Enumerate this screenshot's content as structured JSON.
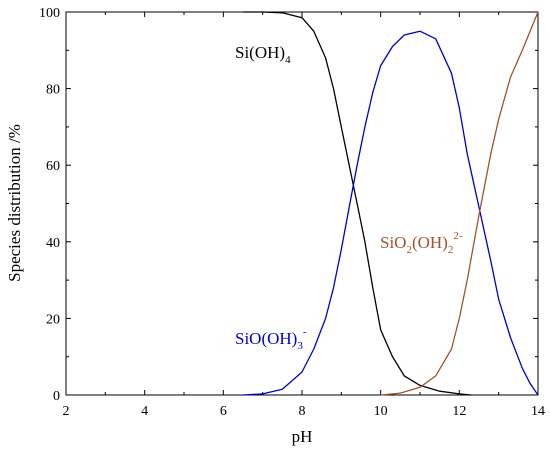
{
  "chart_data": {
    "type": "line",
    "xlabel": "pH",
    "ylabel": "Species distribution /%",
    "xlim": [
      2,
      14
    ],
    "ylim": [
      0,
      100
    ],
    "xticks": [
      "2",
      "4",
      "6",
      "8",
      "10",
      "12",
      "14"
    ],
    "yticks": [
      "0",
      "20",
      "40",
      "60",
      "80",
      "100"
    ],
    "grid": false,
    "legend": "none",
    "series": [
      {
        "name": "Si(OH)4",
        "label_parts": {
          "base": "Si(OH)",
          "sub": "4"
        },
        "color": "#000000",
        "x": [
          6.5,
          7.0,
          7.5,
          8.0,
          8.3,
          8.6,
          8.8,
          9.0,
          9.2,
          9.4,
          9.6,
          9.8,
          10.0,
          10.3,
          10.6,
          11.0,
          11.5,
          12.0,
          12.3
        ],
        "y": [
          100,
          100,
          99.8,
          98.5,
          95,
          88,
          80,
          70,
          60,
          50,
          40,
          28,
          17,
          10,
          5,
          2.5,
          1,
          0.3,
          0
        ]
      },
      {
        "name": "SiO(OH)3-",
        "label_parts": {
          "base": "SiO(OH)",
          "sub": "3",
          "sup": "-"
        },
        "color": "#0000cc",
        "x": [
          6.5,
          7.0,
          7.5,
          8.0,
          8.3,
          8.6,
          8.8,
          9.0,
          9.2,
          9.4,
          9.6,
          9.8,
          10.0,
          10.3,
          10.6,
          11.0,
          11.4,
          11.8,
          12.0,
          12.2,
          12.5,
          12.8,
          13.0,
          13.3,
          13.6,
          13.8,
          14.0
        ],
        "y": [
          0,
          0.3,
          1.5,
          6,
          12,
          20,
          28,
          38,
          49,
          60,
          70,
          79,
          86,
          91,
          94,
          95,
          93,
          84,
          75,
          63,
          49,
          35,
          25,
          15,
          7,
          3,
          0
        ]
      },
      {
        "name": "SiO2(OH)2 2-",
        "label_parts": {
          "base": "SiO",
          "sub1": "2",
          "mid": "(OH)",
          "sub2": "2",
          "sup": "2-"
        },
        "color": "#a0522d",
        "x": [
          10.0,
          10.5,
          11.0,
          11.4,
          11.8,
          12.0,
          12.2,
          12.5,
          12.8,
          13.0,
          13.3,
          13.6,
          13.8,
          14.0
        ],
        "y": [
          0,
          0.5,
          2,
          5,
          12,
          20,
          30,
          47,
          63,
          72,
          83,
          90,
          95,
          100
        ]
      }
    ]
  }
}
